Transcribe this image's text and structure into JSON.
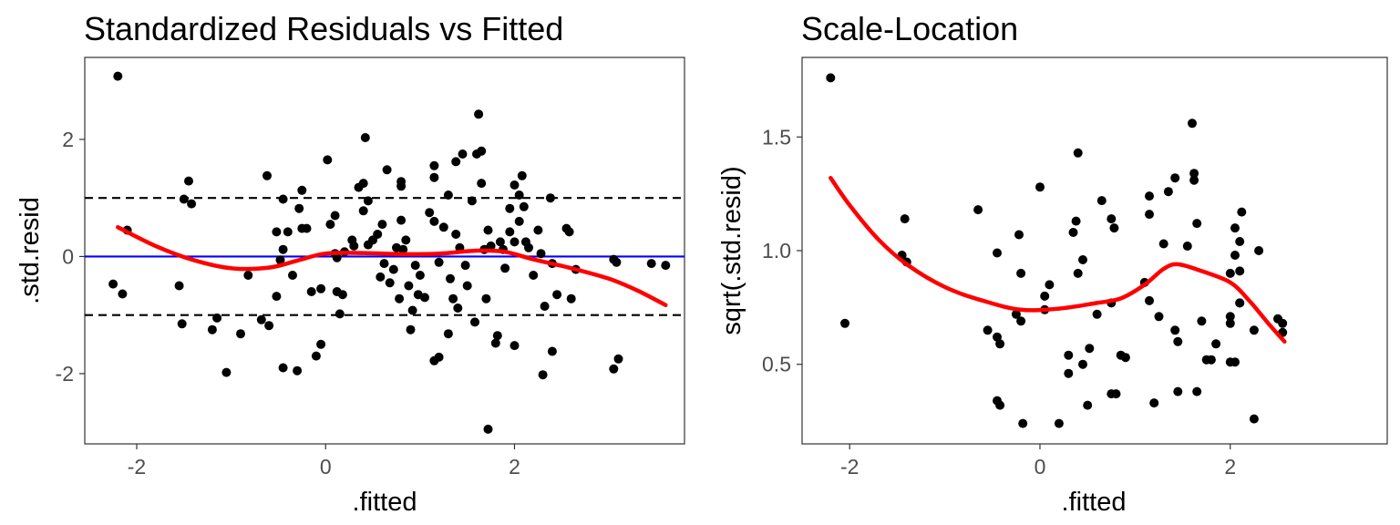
{
  "chart_data": [
    {
      "type": "scatter",
      "title": "Standardized Residuals vs Fitted",
      "xlabel": ".fitted",
      "ylabel": ".std.resid",
      "xlim": [
        -2.55,
        3.8
      ],
      "ylim": [
        -3.2,
        3.4
      ],
      "xticks": [
        -2,
        0,
        2
      ],
      "xtick_labels": [
        "-2",
        "0",
        "2"
      ],
      "yticks": [
        -2,
        0,
        2
      ],
      "ytick_labels": [
        "-2",
        "0",
        "2"
      ],
      "grid": false,
      "reference_lines": [
        {
          "y": 1,
          "color": "#000000",
          "style": "dashed"
        },
        {
          "y": -1,
          "color": "#000000",
          "style": "dashed"
        },
        {
          "y": 0,
          "color": "#0000ff",
          "style": "solid"
        }
      ],
      "points_color": "#000000",
      "smooth_color": "#ff0000",
      "points": [
        [
          -2.2,
          3.08
        ],
        [
          -2.1,
          0.45
        ],
        [
          -2.25,
          -0.47
        ],
        [
          -2.15,
          -0.64
        ],
        [
          -1.45,
          1.29
        ],
        [
          -1.5,
          0.98
        ],
        [
          -1.42,
          0.9
        ],
        [
          -1.55,
          -0.5
        ],
        [
          -1.52,
          -1.15
        ],
        [
          -1.2,
          -1.25
        ],
        [
          -1.15,
          -1.05
        ],
        [
          -1.05,
          -1.98
        ],
        [
          -0.9,
          -1.32
        ],
        [
          -0.82,
          -0.32
        ],
        [
          -0.68,
          -1.08
        ],
        [
          -0.6,
          -1.18
        ],
        [
          -0.62,
          1.38
        ],
        [
          -0.52,
          0.42
        ],
        [
          -0.45,
          0.12
        ],
        [
          -0.48,
          -0.06
        ],
        [
          -0.52,
          -0.68
        ],
        [
          -0.45,
          0.98
        ],
        [
          -0.4,
          0.42
        ],
        [
          -0.35,
          -0.32
        ],
        [
          -0.28,
          0.82
        ],
        [
          -0.25,
          1.13
        ],
        [
          -0.25,
          0.48
        ],
        [
          -0.2,
          0.48
        ],
        [
          -0.45,
          -1.9
        ],
        [
          -0.3,
          -1.95
        ],
        [
          -0.15,
          -0.6
        ],
        [
          -0.1,
          -1.7
        ],
        [
          -0.05,
          -0.55
        ],
        [
          -0.05,
          -1.5
        ],
        [
          0.02,
          1.65
        ],
        [
          0.05,
          0.55
        ],
        [
          0.1,
          0.7
        ],
        [
          0.1,
          0.05
        ],
        [
          0.12,
          -0.02
        ],
        [
          0.12,
          -0.6
        ],
        [
          0.15,
          -0.98
        ],
        [
          0.18,
          -0.65
        ],
        [
          0.2,
          0.08
        ],
        [
          0.28,
          0.28
        ],
        [
          0.3,
          0.18
        ],
        [
          0.35,
          1.18
        ],
        [
          0.4,
          1.25
        ],
        [
          0.4,
          0.78
        ],
        [
          0.42,
          2.03
        ],
        [
          0.45,
          0.95
        ],
        [
          0.45,
          0.2
        ],
        [
          0.5,
          0.28
        ],
        [
          0.55,
          0.38
        ],
        [
          0.58,
          -0.35
        ],
        [
          0.6,
          0.55
        ],
        [
          0.62,
          -0.12
        ],
        [
          0.65,
          1.48
        ],
        [
          0.68,
          -0.45
        ],
        [
          0.72,
          -0.22
        ],
        [
          0.75,
          0.15
        ],
        [
          0.78,
          -0.72
        ],
        [
          0.8,
          1.28
        ],
        [
          0.8,
          1.2
        ],
        [
          0.8,
          0.62
        ],
        [
          0.82,
          0.12
        ],
        [
          0.85,
          0.28
        ],
        [
          0.88,
          -0.5
        ],
        [
          0.9,
          -1.25
        ],
        [
          0.92,
          -0.92
        ],
        [
          0.95,
          -0.15
        ],
        [
          0.98,
          -0.65
        ],
        [
          1.0,
          -0.32
        ],
        [
          1.05,
          -0.7
        ],
        [
          1.1,
          0.75
        ],
        [
          1.15,
          1.55
        ],
        [
          1.15,
          1.35
        ],
        [
          1.15,
          0.6
        ],
        [
          1.15,
          -1.78
        ],
        [
          1.2,
          -1.72
        ],
        [
          1.2,
          -0.1
        ],
        [
          1.25,
          0.5
        ],
        [
          1.3,
          1.05
        ],
        [
          1.3,
          -1.32
        ],
        [
          1.32,
          -0.38
        ],
        [
          1.35,
          -0.72
        ],
        [
          1.38,
          1.62
        ],
        [
          1.38,
          0.38
        ],
        [
          1.4,
          -0.88
        ],
        [
          1.42,
          0.15
        ],
        [
          1.45,
          1.75
        ],
        [
          1.48,
          -0.15
        ],
        [
          1.5,
          -0.5
        ],
        [
          1.55,
          0.95
        ],
        [
          1.58,
          -1.12
        ],
        [
          1.6,
          1.75
        ],
        [
          1.62,
          2.43
        ],
        [
          1.65,
          1.8
        ],
        [
          1.65,
          1.25
        ],
        [
          1.68,
          0.12
        ],
        [
          1.7,
          -0.72
        ],
        [
          1.72,
          -2.95
        ],
        [
          1.72,
          0.45
        ],
        [
          1.75,
          0.18
        ],
        [
          1.8,
          -1.48
        ],
        [
          1.82,
          -1.35
        ],
        [
          1.85,
          0.25
        ],
        [
          1.88,
          0.12
        ],
        [
          1.9,
          -0.2
        ],
        [
          1.95,
          0.82
        ],
        [
          1.95,
          0.42
        ],
        [
          2.0,
          1.22
        ],
        [
          2.0,
          0.25
        ],
        [
          2.0,
          -1.52
        ],
        [
          2.05,
          1.05
        ],
        [
          2.05,
          0.6
        ],
        [
          2.08,
          1.38
        ],
        [
          2.1,
          0.85
        ],
        [
          2.12,
          0.25
        ],
        [
          2.15,
          0.15
        ],
        [
          2.2,
          -0.32
        ],
        [
          2.25,
          0.45
        ],
        [
          2.28,
          0.05
        ],
        [
          2.3,
          -2.02
        ],
        [
          2.32,
          -0.85
        ],
        [
          2.38,
          1.0
        ],
        [
          2.4,
          -1.62
        ],
        [
          2.4,
          -0.12
        ],
        [
          2.45,
          -0.65
        ],
        [
          2.55,
          0.48
        ],
        [
          2.58,
          0.42
        ],
        [
          2.6,
          -0.72
        ],
        [
          2.65,
          -0.22
        ],
        [
          3.05,
          -0.05
        ],
        [
          3.08,
          -0.1
        ],
        [
          3.05,
          -1.92
        ],
        [
          3.1,
          -1.75
        ],
        [
          3.45,
          -0.12
        ],
        [
          3.6,
          -0.15
        ]
      ],
      "smooth": [
        [
          -2.2,
          0.5
        ],
        [
          -1.8,
          0.18
        ],
        [
          -1.4,
          -0.06
        ],
        [
          -1.0,
          -0.2
        ],
        [
          -0.6,
          -0.19
        ],
        [
          -0.3,
          -0.07
        ],
        [
          0.0,
          0.05
        ],
        [
          0.4,
          0.06
        ],
        [
          0.8,
          0.04
        ],
        [
          1.2,
          0.05
        ],
        [
          1.6,
          0.1
        ],
        [
          1.9,
          0.08
        ],
        [
          2.2,
          -0.05
        ],
        [
          2.6,
          -0.2
        ],
        [
          3.0,
          -0.38
        ],
        [
          3.3,
          -0.58
        ],
        [
          3.6,
          -0.83
        ]
      ]
    },
    {
      "type": "scatter",
      "title": "Scale-Location",
      "xlabel": ".fitted",
      "ylabel": "sqrt(.std.resid)",
      "xlim": [
        -2.5,
        3.65
      ],
      "ylim": [
        0.15,
        1.85
      ],
      "xticks": [
        -2,
        0,
        2
      ],
      "xtick_labels": [
        "-2",
        "0",
        "2"
      ],
      "yticks": [
        0.5,
        1.0,
        1.5
      ],
      "ytick_labels": [
        "0.5",
        "1.0",
        "1.5"
      ],
      "grid": false,
      "points_color": "#000000",
      "smooth_color": "#ff0000",
      "points": [
        [
          -2.2,
          1.76
        ],
        [
          -2.05,
          0.68
        ],
        [
          -1.45,
          0.98
        ],
        [
          -1.42,
          1.14
        ],
        [
          -1.4,
          0.95
        ],
        [
          -0.65,
          1.18
        ],
        [
          -0.55,
          0.65
        ],
        [
          -0.45,
          0.62
        ],
        [
          -0.45,
          0.99
        ],
        [
          -0.42,
          0.59
        ],
        [
          -0.45,
          0.34
        ],
        [
          -0.42,
          0.32
        ],
        [
          -0.25,
          0.72
        ],
        [
          -0.2,
          0.69
        ],
        [
          -0.22,
          1.07
        ],
        [
          -0.2,
          0.9
        ],
        [
          -0.18,
          0.24
        ],
        [
          0.0,
          1.28
        ],
        [
          0.05,
          0.74
        ],
        [
          0.05,
          0.8
        ],
        [
          0.1,
          0.85
        ],
        [
          0.2,
          0.24
        ],
        [
          0.3,
          0.46
        ],
        [
          0.3,
          0.54
        ],
        [
          0.35,
          1.08
        ],
        [
          0.38,
          1.13
        ],
        [
          0.4,
          0.9
        ],
        [
          0.4,
          1.43
        ],
        [
          0.45,
          0.96
        ],
        [
          0.45,
          0.5
        ],
        [
          0.52,
          0.57
        ],
        [
          0.5,
          0.32
        ],
        [
          0.6,
          0.72
        ],
        [
          0.65,
          1.22
        ],
        [
          0.75,
          0.77
        ],
        [
          0.75,
          0.37
        ],
        [
          0.78,
          1.1
        ],
        [
          0.75,
          1.14
        ],
        [
          0.8,
          0.37
        ],
        [
          0.85,
          0.54
        ],
        [
          0.9,
          0.53
        ],
        [
          1.1,
          0.86
        ],
        [
          1.15,
          0.78
        ],
        [
          1.15,
          1.16
        ],
        [
          1.15,
          1.24
        ],
        [
          1.2,
          0.33
        ],
        [
          1.25,
          0.71
        ],
        [
          1.3,
          1.03
        ],
        [
          1.35,
          1.26
        ],
        [
          1.42,
          1.32
        ],
        [
          1.42,
          0.65
        ],
        [
          1.45,
          0.6
        ],
        [
          1.45,
          0.38
        ],
        [
          1.55,
          1.02
        ],
        [
          1.6,
          1.56
        ],
        [
          1.62,
          1.34
        ],
        [
          1.62,
          1.31
        ],
        [
          1.65,
          1.12
        ],
        [
          1.65,
          0.38
        ],
        [
          1.7,
          0.69
        ],
        [
          1.75,
          0.52
        ],
        [
          1.8,
          0.52
        ],
        [
          1.85,
          0.59
        ],
        [
          2.0,
          0.9
        ],
        [
          2.0,
          0.71
        ],
        [
          2.0,
          0.68
        ],
        [
          2.0,
          0.51
        ],
        [
          2.05,
          0.51
        ],
        [
          2.05,
          1.1
        ],
        [
          2.05,
          0.98
        ],
        [
          2.1,
          1.04
        ],
        [
          2.1,
          0.91
        ],
        [
          2.12,
          1.17
        ],
        [
          2.1,
          0.77
        ],
        [
          2.1,
          0.77
        ],
        [
          2.25,
          0.65
        ],
        [
          2.25,
          0.26
        ],
        [
          2.3,
          1.0
        ],
        [
          2.5,
          0.7
        ],
        [
          2.55,
          0.68
        ],
        [
          2.55,
          0.64
        ]
      ],
      "smooth": [
        [
          -2.2,
          1.32
        ],
        [
          -2.0,
          1.2
        ],
        [
          -1.7,
          1.05
        ],
        [
          -1.4,
          0.94
        ],
        [
          -1.0,
          0.84
        ],
        [
          -0.6,
          0.78
        ],
        [
          -0.2,
          0.74
        ],
        [
          0.2,
          0.745
        ],
        [
          0.6,
          0.77
        ],
        [
          0.85,
          0.79
        ],
        [
          1.1,
          0.85
        ],
        [
          1.3,
          0.92
        ],
        [
          1.45,
          0.94
        ],
        [
          1.7,
          0.91
        ],
        [
          2.0,
          0.86
        ],
        [
          2.2,
          0.78
        ],
        [
          2.4,
          0.68
        ],
        [
          2.57,
          0.6
        ]
      ]
    }
  ]
}
